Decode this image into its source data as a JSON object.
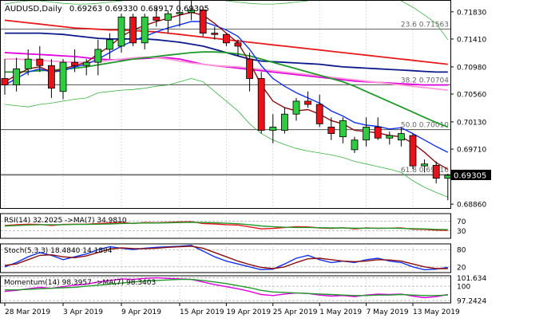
{
  "header": {
    "symbol": "AUDUSD,Daily",
    "ohlc": "0.69263 0.69330 0.68917 0.69305"
  },
  "colors": {
    "bull": "#2ecc40",
    "bear": "#e8121b",
    "ma_red": "#e8191b",
    "ma_navy": "#0d1a8a",
    "ma_magenta": "#e000e0",
    "ma_pink": "#ff9ad6",
    "ma_green": "#1f9a2a",
    "ma_blue": "#1030f0",
    "ma_maroon": "#8b0d0d",
    "bands": "#3cb043",
    "fib_line": "#333333",
    "grid": "#c8c8c8",
    "price_tag_bg": "#000000"
  },
  "chart_data": {
    "type": "candlestick",
    "x_labels": [
      "28 Mar 2019",
      "3 Apr 2019",
      "9 Apr 2019",
      "15 Apr 2019",
      "19 Apr 2019",
      "25 Apr 2019",
      "1 May 2019",
      "7 May 2019",
      "13 May 2019"
    ],
    "x_label_positions": [
      0,
      5,
      10,
      15,
      19,
      23,
      27,
      31,
      35
    ],
    "y_ticks": [
      "0.71830",
      "0.71410",
      "0.70980",
      "0.70560",
      "0.70130",
      "0.69710",
      "0.68860"
    ],
    "ylim": [
      0.688,
      0.72
    ],
    "current_price": "0.69305",
    "current_price_value": 0.69305,
    "fib_levels": [
      {
        "label": "23.6 0.71563",
        "value": 0.71563
      },
      {
        "label": "38.2 0.70704",
        "value": 0.70704
      },
      {
        "label": "50.0 0.70010",
        "value": 0.7001
      },
      {
        "label": "61.8 0.69316",
        "value": 0.69316
      }
    ],
    "candles": [
      {
        "o": 0.708,
        "h": 0.711,
        "l": 0.7055,
        "c": 0.707
      },
      {
        "o": 0.707,
        "h": 0.7112,
        "l": 0.706,
        "c": 0.7095
      },
      {
        "o": 0.7095,
        "h": 0.7125,
        "l": 0.7085,
        "c": 0.711
      },
      {
        "o": 0.711,
        "h": 0.713,
        "l": 0.709,
        "c": 0.71
      },
      {
        "o": 0.71,
        "h": 0.711,
        "l": 0.705,
        "c": 0.7065
      },
      {
        "o": 0.706,
        "h": 0.711,
        "l": 0.7048,
        "c": 0.7105
      },
      {
        "o": 0.7105,
        "h": 0.7125,
        "l": 0.709,
        "c": 0.71
      },
      {
        "o": 0.71,
        "h": 0.711,
        "l": 0.7085,
        "c": 0.7105
      },
      {
        "o": 0.7105,
        "h": 0.714,
        "l": 0.7085,
        "c": 0.7125
      },
      {
        "o": 0.7125,
        "h": 0.715,
        "l": 0.711,
        "c": 0.714
      },
      {
        "o": 0.713,
        "h": 0.718,
        "l": 0.712,
        "c": 0.7175
      },
      {
        "o": 0.7175,
        "h": 0.718,
        "l": 0.713,
        "c": 0.7135
      },
      {
        "o": 0.7135,
        "h": 0.718,
        "l": 0.7125,
        "c": 0.7175
      },
      {
        "o": 0.7175,
        "h": 0.719,
        "l": 0.716,
        "c": 0.717
      },
      {
        "o": 0.717,
        "h": 0.7185,
        "l": 0.715,
        "c": 0.718
      },
      {
        "o": 0.718,
        "h": 0.72,
        "l": 0.716,
        "c": 0.7182
      },
      {
        "o": 0.7182,
        "h": 0.72,
        "l": 0.717,
        "c": 0.7186
      },
      {
        "o": 0.7186,
        "h": 0.719,
        "l": 0.7145,
        "c": 0.715
      },
      {
        "o": 0.715,
        "h": 0.716,
        "l": 0.714,
        "c": 0.7148
      },
      {
        "o": 0.7148,
        "h": 0.715,
        "l": 0.713,
        "c": 0.7135
      },
      {
        "o": 0.7135,
        "h": 0.714,
        "l": 0.7115,
        "c": 0.713
      },
      {
        "o": 0.711,
        "h": 0.712,
        "l": 0.706,
        "c": 0.708
      },
      {
        "o": 0.708,
        "h": 0.709,
        "l": 0.6995,
        "c": 0.7
      },
      {
        "o": 0.7,
        "h": 0.7025,
        "l": 0.698,
        "c": 0.7005
      },
      {
        "o": 0.7,
        "h": 0.7035,
        "l": 0.6995,
        "c": 0.7025
      },
      {
        "o": 0.7025,
        "h": 0.705,
        "l": 0.7015,
        "c": 0.7045
      },
      {
        "o": 0.7045,
        "h": 0.706,
        "l": 0.7035,
        "c": 0.704
      },
      {
        "o": 0.704,
        "h": 0.7055,
        "l": 0.7005,
        "c": 0.701
      },
      {
        "o": 0.7005,
        "h": 0.702,
        "l": 0.6985,
        "c": 0.6995
      },
      {
        "o": 0.699,
        "h": 0.702,
        "l": 0.698,
        "c": 0.7015
      },
      {
        "o": 0.697,
        "h": 0.699,
        "l": 0.6965,
        "c": 0.6985
      },
      {
        "o": 0.6985,
        "h": 0.702,
        "l": 0.6975,
        "c": 0.7005
      },
      {
        "o": 0.7005,
        "h": 0.702,
        "l": 0.6985,
        "c": 0.6988
      },
      {
        "o": 0.6988,
        "h": 0.6998,
        "l": 0.6978,
        "c": 0.6992
      },
      {
        "o": 0.6985,
        "h": 0.7005,
        "l": 0.6975,
        "c": 0.6995
      },
      {
        "o": 0.6992,
        "h": 0.6995,
        "l": 0.694,
        "c": 0.6945
      },
      {
        "o": 0.6945,
        "h": 0.6955,
        "l": 0.6935,
        "c": 0.6948
      },
      {
        "o": 0.6946,
        "h": 0.6952,
        "l": 0.6918,
        "c": 0.6926
      },
      {
        "o": 0.6926,
        "h": 0.6933,
        "l": 0.6892,
        "c": 0.69305
      }
    ],
    "overlays": [
      {
        "key": "ma_red",
        "values": [
          0.717,
          0.7168,
          0.7166,
          0.7164,
          0.7162,
          0.716,
          0.7158,
          0.7157,
          0.7156,
          0.7155,
          0.7155,
          0.7154,
          0.7153,
          0.7152,
          0.715,
          0.7148,
          0.7146,
          0.7144,
          0.7142,
          0.714,
          0.7138,
          0.7136,
          0.7134,
          0.7132,
          0.713,
          0.7128,
          0.7126,
          0.7124,
          0.7122,
          0.712,
          0.7118,
          0.7116,
          0.7114,
          0.7112,
          0.711,
          0.7108,
          0.7106,
          0.7104,
          0.7102
        ]
      },
      {
        "key": "ma_navy",
        "values": [
          0.715,
          0.715,
          0.715,
          0.715,
          0.7149,
          0.7148,
          0.7146,
          0.7144,
          0.7142,
          0.7141,
          0.7141,
          0.7141,
          0.7141,
          0.714,
          0.7138,
          0.7136,
          0.7133,
          0.713,
          0.7125,
          0.712,
          0.7115,
          0.711,
          0.7107,
          0.7106,
          0.7105,
          0.7104,
          0.7103,
          0.7102,
          0.71,
          0.7098,
          0.7097,
          0.7096,
          0.7095,
          0.7094,
          0.7093,
          0.7092,
          0.7091,
          0.709,
          0.709
        ]
      },
      {
        "key": "ma_magenta",
        "values": [
          0.712,
          0.7119,
          0.7118,
          0.7117,
          0.7116,
          0.7115,
          0.7114,
          0.7112,
          0.711,
          0.7109,
          0.7109,
          0.711,
          0.7111,
          0.7112,
          0.7112,
          0.711,
          0.7106,
          0.7102,
          0.71,
          0.7098,
          0.7096,
          0.7094,
          0.7092,
          0.709,
          0.7088,
          0.7086,
          0.7084,
          0.7082,
          0.708,
          0.7078,
          0.7076,
          0.7075,
          0.7074,
          0.7073,
          0.7072,
          0.7071,
          0.707,
          0.707,
          0.707
        ]
      },
      {
        "key": "ma_pink",
        "values": [
          0.711,
          0.711,
          0.7109,
          0.7108,
          0.7107,
          0.7106,
          0.7105,
          0.7105,
          0.7106,
          0.7108,
          0.711,
          0.7112,
          0.7113,
          0.7112,
          0.711,
          0.7107,
          0.7104,
          0.7102,
          0.71,
          0.7099,
          0.7098,
          0.7096,
          0.7094,
          0.7092,
          0.709,
          0.7088,
          0.7086,
          0.7084,
          0.7082,
          0.708,
          0.7078,
          0.7076,
          0.7074,
          0.7072,
          0.707,
          0.7068,
          0.7066,
          0.7064,
          0.7062
        ]
      },
      {
        "key": "ma_green",
        "values": [
          0.709,
          0.709,
          0.7091,
          0.7092,
          0.7093,
          0.7094,
          0.7096,
          0.7098,
          0.7101,
          0.7104,
          0.7107,
          0.711,
          0.7112,
          0.7114,
          0.7116,
          0.7118,
          0.712,
          0.7121,
          0.7121,
          0.712,
          0.7118,
          0.7115,
          0.711,
          0.7105,
          0.71,
          0.7095,
          0.709,
          0.7085,
          0.708,
          0.7075,
          0.7068,
          0.706,
          0.7052,
          0.7044,
          0.7036,
          0.7028,
          0.702,
          0.7012,
          0.7005
        ]
      },
      {
        "key": "ma_blue",
        "values": [
          0.707,
          0.708,
          0.709,
          0.7095,
          0.709,
          0.7092,
          0.7098,
          0.7102,
          0.711,
          0.712,
          0.713,
          0.7138,
          0.7145,
          0.7152,
          0.7158,
          0.7163,
          0.7168,
          0.7168,
          0.7162,
          0.7155,
          0.7145,
          0.7125,
          0.71,
          0.708,
          0.7068,
          0.7058,
          0.705,
          0.7042,
          0.703,
          0.7022,
          0.7012,
          0.7008,
          0.7006,
          0.7002,
          0.7004,
          0.6995,
          0.6985,
          0.6975,
          0.6966
        ]
      },
      {
        "key": "ma_maroon",
        "values": [
          0.7075,
          0.7085,
          0.7095,
          0.7098,
          0.709,
          0.7095,
          0.71,
          0.7105,
          0.7118,
          0.713,
          0.7145,
          0.7155,
          0.7162,
          0.7168,
          0.7173,
          0.7178,
          0.7182,
          0.7178,
          0.7165,
          0.715,
          0.7135,
          0.7105,
          0.707,
          0.7045,
          0.7035,
          0.703,
          0.7032,
          0.7025,
          0.7015,
          0.701,
          0.7,
          0.6998,
          0.6996,
          0.6992,
          0.699,
          0.698,
          0.6966,
          0.695,
          0.694
        ]
      },
      {
        "key": "bands",
        "values": [
          0.7195,
          0.7198,
          0.72,
          0.72,
          0.7198,
          0.7196,
          0.7195,
          0.7195,
          0.7196,
          0.7198,
          0.72,
          0.7202,
          0.7203,
          0.7204,
          0.7205,
          0.7205,
          0.7204,
          0.7203,
          0.7202,
          0.72,
          0.7198,
          0.7196,
          0.7195,
          0.7195,
          0.7196,
          0.7198,
          0.72,
          0.7205,
          0.7208,
          0.721,
          0.7212,
          0.7213,
          0.7212,
          0.7208,
          0.72,
          0.719,
          0.7178,
          0.7165,
          0.714
        ]
      },
      {
        "key": "bands",
        "values": [
          0.704,
          0.7038,
          0.7036,
          0.704,
          0.7042,
          0.7045,
          0.7048,
          0.705,
          0.7058,
          0.706,
          0.7062,
          0.7063,
          0.7065,
          0.7068,
          0.707,
          0.7075,
          0.708,
          0.7075,
          0.706,
          0.7045,
          0.703,
          0.701,
          0.6995,
          0.6985,
          0.6978,
          0.6972,
          0.6968,
          0.6965,
          0.6962,
          0.6958,
          0.6952,
          0.6948,
          0.6944,
          0.694,
          0.6935,
          0.6922,
          0.6912,
          0.6904,
          0.6897
        ]
      }
    ],
    "subpanels": [
      {
        "id": "rsi",
        "label": "RSI(14) 32.2025  ->MA(7) 34.9810",
        "ticks": [
          {
            "label": "70",
            "value": 70
          },
          {
            "label": "30",
            "value": 30
          }
        ],
        "ylim": [
          0,
          100
        ],
        "lines": [
          {
            "key": "bear",
            "values": [
              52,
              55,
              57,
              56,
              52,
              56,
              57,
              57,
              60,
              62,
              65,
              60,
              64,
              63,
              65,
              66,
              67,
              60,
              58,
              55,
              54,
              46,
              38,
              40,
              44,
              47,
              46,
              42,
              40,
              43,
              38,
              42,
              40,
              41,
              42,
              37,
              36,
              33,
              32
            ]
          },
          {
            "key": "ma_green",
            "values": [
              50,
              52,
              54,
              55,
              55,
              55,
              56,
              56,
              57,
              58,
              60,
              61,
              62,
              62,
              63,
              64,
              65,
              64,
              63,
              61,
              59,
              55,
              50,
              47,
              45,
              44,
              44,
              43,
              42,
              42,
              41,
              41,
              41,
              41,
              40,
              39,
              38,
              36,
              35
            ]
          }
        ]
      },
      {
        "id": "stoch",
        "label": "Stoch(5,3,3) 18.4840 14.1894",
        "ticks": [
          {
            "label": "80",
            "value": 80
          },
          {
            "label": "20",
            "value": 20
          }
        ],
        "ylim": [
          0,
          100
        ],
        "lines": [
          {
            "key": "ma_blue",
            "values": [
              20,
              35,
              55,
              70,
              60,
              45,
              55,
              65,
              80,
              90,
              85,
              80,
              85,
              88,
              90,
              92,
              95,
              75,
              55,
              40,
              30,
              20,
              10,
              12,
              30,
              50,
              60,
              45,
              35,
              40,
              35,
              45,
              50,
              40,
              35,
              20,
              10,
              12,
              18
            ]
          },
          {
            "key": "ma_maroon",
            "values": [
              25,
              30,
              45,
              60,
              62,
              55,
              52,
              58,
              70,
              82,
              86,
              84,
              83,
              85,
              88,
              90,
              92,
              85,
              70,
              55,
              40,
              28,
              18,
              14,
              20,
              35,
              48,
              50,
              45,
              40,
              38,
              40,
              45,
              44,
              40,
              30,
              20,
              14,
              14
            ]
          }
        ]
      },
      {
        "id": "mom",
        "label": "Momentum(14) 98.3957  ->MA(7) 98.3403",
        "ticks": [
          {
            "label": "101.634",
            "value": 101.634
          },
          {
            "label": "100",
            "value": 100
          },
          {
            "label": "97.2424",
            "value": 97.2424
          }
        ],
        "ylim": [
          96.8,
          102.0
        ],
        "lines": [
          {
            "key": "ma_magenta",
            "values": [
              99.0,
              99.2,
              99.5,
              99.8,
              99.6,
              99.9,
              100.2,
              100.4,
              100.8,
              101.1,
              101.4,
              101.3,
              101.5,
              101.6,
              101.5,
              101.4,
              101.3,
              100.8,
              100.3,
              99.9,
              99.5,
              99.0,
              98.4,
              98.2,
              98.5,
              98.7,
              98.6,
              98.3,
              98.1,
              98.2,
              98.0,
              98.3,
              98.5,
              98.4,
              98.5,
              98.1,
              97.8,
              98.0,
              98.4
            ]
          },
          {
            "key": "ma_green",
            "values": [
              99.3,
              99.3,
              99.4,
              99.5,
              99.6,
              99.7,
              99.8,
              100.0,
              100.2,
              100.4,
              100.6,
              100.8,
              101.0,
              101.1,
              101.2,
              101.3,
              101.3,
              101.1,
              100.8,
              100.5,
              100.1,
              99.7,
              99.2,
              98.9,
              98.8,
              98.7,
              98.6,
              98.5,
              98.4,
              98.3,
              98.2,
              98.2,
              98.3,
              98.3,
              98.4,
              98.3,
              98.2,
              98.2,
              98.3
            ]
          }
        ]
      }
    ]
  }
}
